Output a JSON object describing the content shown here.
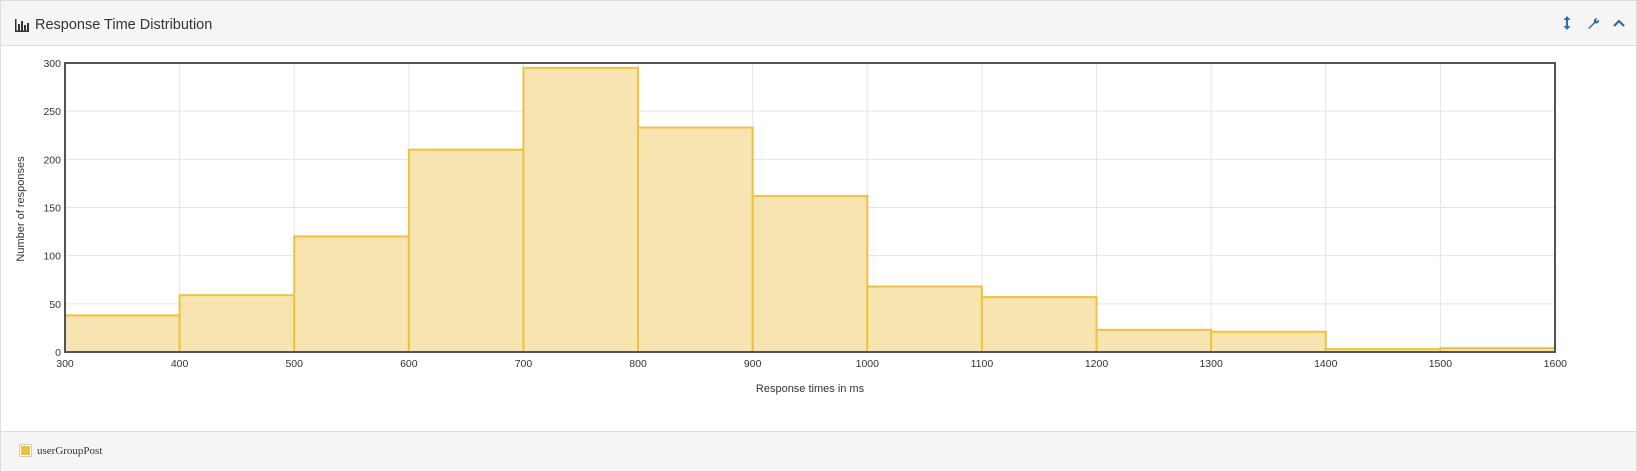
{
  "panel": {
    "title": "Response Time Distribution",
    "title_icon": "bar-chart-icon",
    "tools": [
      {
        "name": "resize-icon",
        "glyph": "↕"
      },
      {
        "name": "wrench-icon",
        "glyph": "wrench"
      },
      {
        "name": "collapse-icon",
        "glyph": "^"
      }
    ]
  },
  "colors": {
    "bar_fill": "#f7e4b1",
    "bar_stroke": "#edc240",
    "accent": "#2a6fa8",
    "legend_swatch": "#edc240"
  },
  "legend": {
    "label": "userGroupPost",
    "position": "bottom-left"
  },
  "chart_data": {
    "type": "bar",
    "title": "",
    "xlabel": "Response times in ms",
    "ylabel": "Number of responses",
    "xlim": [
      300,
      1600
    ],
    "ylim": [
      0,
      300
    ],
    "x_ticks": [
      300,
      400,
      500,
      600,
      700,
      800,
      900,
      1000,
      1100,
      1200,
      1300,
      1400,
      1500,
      1600
    ],
    "y_ticks": [
      0,
      50,
      100,
      150,
      200,
      250,
      300
    ],
    "bin_width": 100,
    "grid": true,
    "series": [
      {
        "name": "userGroupPost",
        "bins": [
          {
            "start": 300,
            "value": 38
          },
          {
            "start": 400,
            "value": 59
          },
          {
            "start": 500,
            "value": 120
          },
          {
            "start": 600,
            "value": 210
          },
          {
            "start": 700,
            "value": 295
          },
          {
            "start": 800,
            "value": 233
          },
          {
            "start": 900,
            "value": 162
          },
          {
            "start": 1000,
            "value": 68
          },
          {
            "start": 1100,
            "value": 57
          },
          {
            "start": 1200,
            "value": 23
          },
          {
            "start": 1300,
            "value": 21
          },
          {
            "start": 1400,
            "value": 3
          },
          {
            "start": 1500,
            "value": 4
          }
        ]
      }
    ]
  }
}
